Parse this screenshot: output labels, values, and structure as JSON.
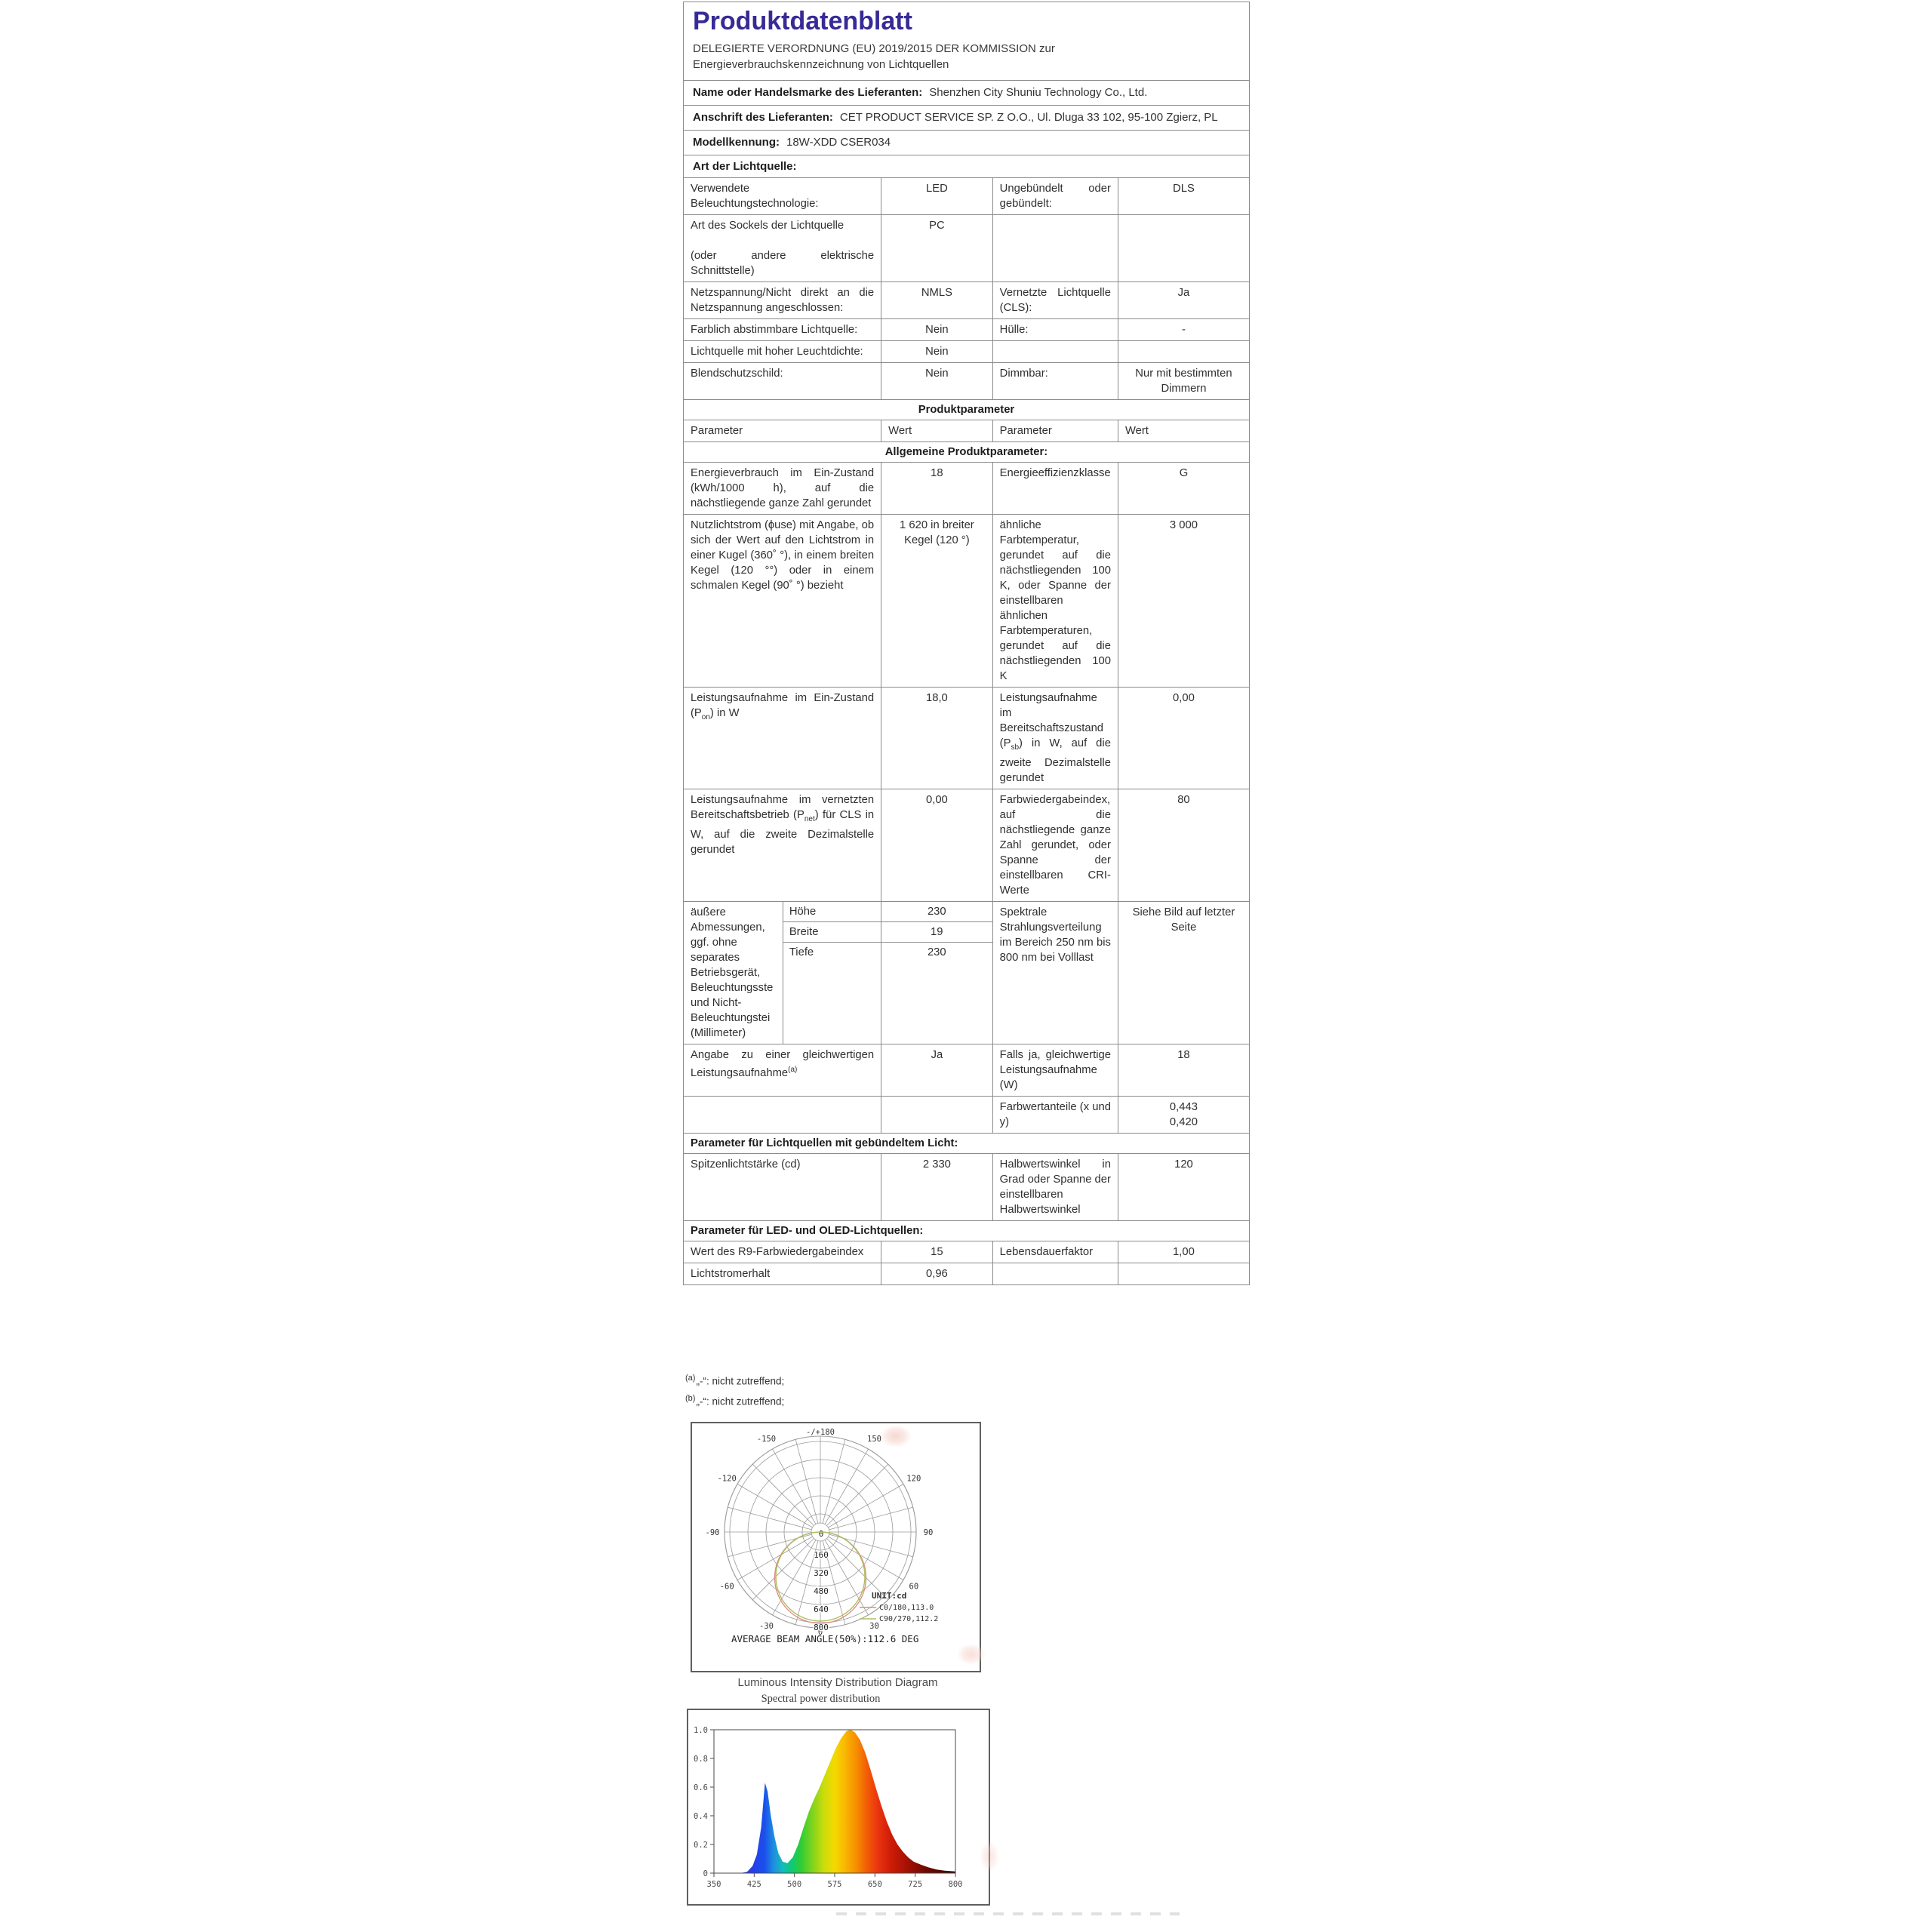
{
  "accent_color": "#362b96",
  "border_color": "#8b8b8b",
  "document": {
    "title": "Produktdatenblatt",
    "subtitle_lines": [
      "DELEGIERTE VERORDNUNG (EU) 2019/2015 DER KOMMISSION zur",
      "Energieverbrauchskennzeichnung von Lichtquellen"
    ],
    "info_rows": [
      {
        "label": "Name oder Handelsmarke des Lieferanten:",
        "value": "Shenzhen City Shuniu Technology Co., Ltd."
      },
      {
        "label": "Anschrift des Lieferanten:",
        "value": "CET PRODUCT SERVICE SP. Z O.O., Ul. Dluga 33 102, 95-100 Zgierz, PL"
      },
      {
        "label": "Modellkennung:",
        "value": "18W-XDD CSER034"
      }
    ],
    "section_header": "Art der Lichtquelle:"
  },
  "product_table": {
    "rows": [
      {
        "t": "d",
        "c1": "Verwendete Beleuchtungstechnologie:",
        "v1": "LED",
        "c2": "Ungebündelt oder gebündelt:",
        "v2": "DLS"
      },
      {
        "t": "d",
        "c1": "Art des Sockels der Lichtquelle\n\n(oder andere elektrische Schnittstelle)",
        "v1": "PC",
        "c2": "",
        "v2": ""
      },
      {
        "t": "d",
        "c1": "Netzspannung/Nicht direkt an die Netzspannung angeschlossen:",
        "v1": "NMLS",
        "c2": "Vernetzte Lichtquelle (CLS):",
        "v2": "Ja"
      },
      {
        "t": "d",
        "c1": "Farblich abstimmbare Lichtquelle:",
        "v1": "Nein",
        "c2": "Hülle:",
        "v2": "-"
      },
      {
        "t": "d",
        "c1": "Lichtquelle mit hoher Leuchtdichte:",
        "v1": "Nein",
        "c2": "",
        "v2": ""
      },
      {
        "t": "d",
        "c1": "Blendschutzschild:",
        "v1": "Nein",
        "c2": "Dimmbar:",
        "v2": "Nur mit bestimmten Dimmern"
      },
      {
        "t": "s",
        "text": "Produktparameter",
        "align": "center"
      },
      {
        "t": "h",
        "c1": "Parameter",
        "v1": "Wert",
        "c2": "Parameter",
        "v2": "Wert"
      },
      {
        "t": "s",
        "text": "Allgemeine Produktparameter:",
        "align": "center"
      },
      {
        "t": "d",
        "c1": "Energieverbrauch im Ein-Zustand (kWh/1000 h), auf die nächstliegende ganze Zahl gerundet",
        "v1": "18",
        "c2": "Energieeffizienzklasse",
        "v2": "G"
      },
      {
        "t": "d",
        "c1": "Nutzlichtstrom (ϕuse) mit Angabe, ob sich der Wert auf den Lichtstrom in einer Kugel (360˚ °), in einem breiten Kegel (120 °°) oder in einem schmalen Kegel (90˚ °) bezieht",
        "v1": "1 620 in breiter Kegel (120 °)",
        "c2": "ähnliche Farbtemperatur, gerundet auf die nächstliegenden 100 K, oder Spanne der einstellbaren ähnlichen Farbtemperaturen, gerundet auf die nächstliegenden 100 K",
        "v2": "3 000"
      },
      {
        "t": "d",
        "c1": "Leistungsaufnahme im Ein-Zustand (P[sub]on[/sub]) in W",
        "v1": "18,0",
        "c2": "Leistungsaufnahme im Bereitschaftszustand (P[sub]sb[/sub]) in W, auf die zweite Dezimalstelle gerundet",
        "v2": "0,00"
      },
      {
        "t": "d",
        "c1": "Leistungsaufnahme im vernetzten Bereitschaftsbetrieb (P[sub]net[/sub]) für CLS in W, auf die zweite Dezimalstelle gerundet",
        "v1": "0,00",
        "c2": "Farbwiedergabeindex, auf die nächstliegende ganze Zahl gerundet, oder Spanne der einstellbaren CRI-Werte",
        "v2": "80"
      },
      {
        "t": "dims",
        "label": "äußere Abmessungen, ggf. ohne separates Betriebsgerät, Beleuchtungsste und Nicht- Beleuchtungstei (Millimeter)",
        "dims": [
          {
            "name": "Höhe",
            "value": "230"
          },
          {
            "name": "Breite",
            "value": "19"
          },
          {
            "name": "Tiefe",
            "value": "230"
          }
        ],
        "c2": "Spektrale Strahlungsverteilung im Bereich 250 nm bis 800 nm bei Volllast",
        "v2": "Siehe Bild auf letzter Seite"
      },
      {
        "t": "d",
        "c1": "Angabe zu einer gleichwertigen Leistungsaufnahme[sup](a)[/sup]",
        "v1": "Ja",
        "c2": "Falls ja, gleichwertige Leistungsaufnahme (W)",
        "v2": "18"
      },
      {
        "t": "d",
        "c1": "",
        "v1": "",
        "c2": "Farbwertanteile (x und y)",
        "v2": "0,443\n0,420"
      },
      {
        "t": "s",
        "text": "Parameter für Lichtquellen mit gebündeltem Licht:",
        "align": "left"
      },
      {
        "t": "d",
        "c1": "Spitzenlichtstärke (cd)",
        "v1": "2 330",
        "c2": "Halbwertswinkel in Grad oder Spanne der einstellbaren Halbwertswinkel",
        "v2": "120"
      },
      {
        "t": "s",
        "text": "Parameter für LED- und OLED-Lichtquellen:",
        "align": "left"
      },
      {
        "t": "d",
        "c1": "Wert des R9-Farbwiedergabeindex",
        "v1": "15",
        "c2": "Lebensdauerfaktor",
        "v2": "1,00"
      },
      {
        "t": "d",
        "c1": "Lichtstromerhalt",
        "v1": "0,96",
        "c2": "",
        "v2": ""
      }
    ]
  },
  "footnotes": [
    {
      "marker": "(a)",
      "text": "„-“: nicht zutreffend;"
    },
    {
      "marker": "(b)",
      "text": "„-“: nicht zutreffend;"
    }
  ],
  "captions": {
    "intensity": "Luminous Intensity Distribution Diagram",
    "spectral": "Spectral power distribution"
  },
  "chart_data": [
    {
      "type": "line",
      "polar": true,
      "name": "luminous-intensity-distribution",
      "unit_label": "UNIT:cd",
      "top_label": "-/+180",
      "bottom_label": "0",
      "angle_labels": [
        -150,
        -120,
        -90,
        -60,
        -30,
        30,
        60,
        90,
        120,
        150
      ],
      "radial_labels": [
        "0",
        "160",
        "320",
        "480",
        "640",
        "800"
      ],
      "rmax": 800,
      "ring_step": 160,
      "series": [
        {
          "name": "C0/180,113.0",
          "color": "#df8b7c",
          "beam_angle_deg": 113.0
        },
        {
          "name": "C90/270,112.2",
          "color": "#aebe62",
          "beam_angle_deg": 112.2
        }
      ],
      "annotation": "AVERAGE BEAM ANGLE(50%):112.6 DEG"
    },
    {
      "type": "area",
      "name": "spectral-power-distribution",
      "xlim": [
        350,
        800
      ],
      "ylim": [
        0,
        1
      ],
      "x_ticks": [
        "350",
        "425",
        "500",
        "575",
        "650",
        "725",
        "800"
      ],
      "y_ticks": [
        "1.0",
        "0.8",
        "0.6",
        "0.4",
        "0.2",
        "0"
      ],
      "points": [
        [
          400,
          0
        ],
        [
          412,
          0.01
        ],
        [
          422,
          0.05
        ],
        [
          430,
          0.13
        ],
        [
          438,
          0.32
        ],
        [
          445,
          0.63
        ],
        [
          450,
          0.57
        ],
        [
          456,
          0.4
        ],
        [
          463,
          0.25
        ],
        [
          470,
          0.14
        ],
        [
          478,
          0.08
        ],
        [
          487,
          0.07
        ],
        [
          497,
          0.11
        ],
        [
          507,
          0.2
        ],
        [
          517,
          0.32
        ],
        [
          527,
          0.43
        ],
        [
          537,
          0.52
        ],
        [
          547,
          0.6
        ],
        [
          557,
          0.69
        ],
        [
          567,
          0.78
        ],
        [
          577,
          0.87
        ],
        [
          587,
          0.94
        ],
        [
          597,
          0.99
        ],
        [
          605,
          1.0
        ],
        [
          613,
          0.98
        ],
        [
          622,
          0.93
        ],
        [
          632,
          0.84
        ],
        [
          642,
          0.72
        ],
        [
          652,
          0.59
        ],
        [
          662,
          0.47
        ],
        [
          672,
          0.36
        ],
        [
          682,
          0.27
        ],
        [
          692,
          0.2
        ],
        [
          702,
          0.15
        ],
        [
          712,
          0.11
        ],
        [
          722,
          0.08
        ],
        [
          735,
          0.06
        ],
        [
          750,
          0.04
        ],
        [
          765,
          0.025
        ],
        [
          780,
          0.017
        ],
        [
          800,
          0.012
        ]
      ],
      "gradient_stops": [
        [
          0.08,
          "#3b3bc8"
        ],
        [
          0.168,
          "#2440e8"
        ],
        [
          0.21,
          "#1b50ec"
        ],
        [
          0.245,
          "#1e8ce0"
        ],
        [
          0.285,
          "#12bdbb"
        ],
        [
          0.32,
          "#0fc878"
        ],
        [
          0.36,
          "#2ecc35"
        ],
        [
          0.41,
          "#83d41c"
        ],
        [
          0.455,
          "#cbdc0c"
        ],
        [
          0.5,
          "#f4da00"
        ],
        [
          0.545,
          "#f9b501"
        ],
        [
          0.59,
          "#f78d00"
        ],
        [
          0.635,
          "#f25b05"
        ],
        [
          0.68,
          "#e93411"
        ],
        [
          0.73,
          "#d01d06"
        ],
        [
          0.8,
          "#a41103"
        ],
        [
          0.88,
          "#6d0a02"
        ],
        [
          1,
          "#380500"
        ]
      ]
    }
  ]
}
